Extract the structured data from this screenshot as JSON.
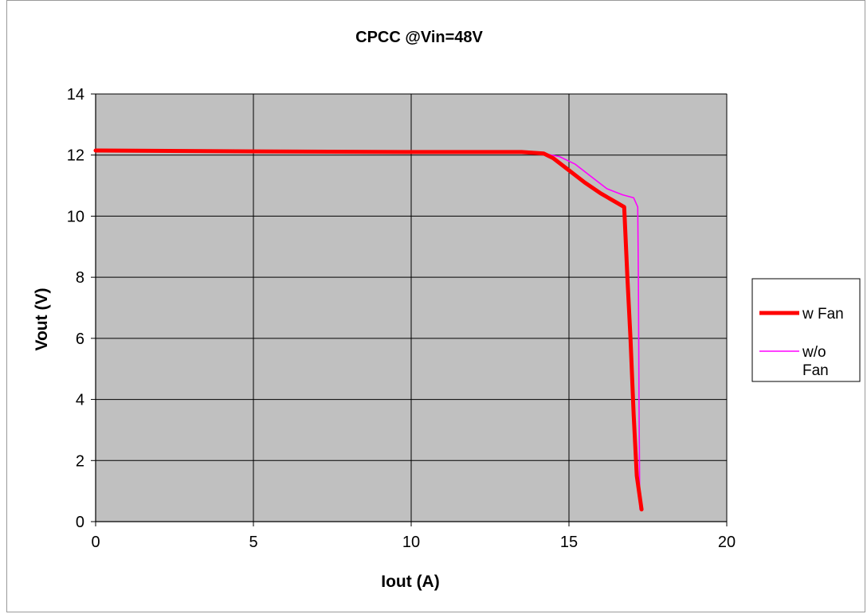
{
  "chart_data": {
    "type": "line",
    "title": "CPCC @Vin=48V",
    "xlabel": "Iout (A)",
    "ylabel": "Vout (V)",
    "xlim": [
      0,
      20
    ],
    "ylim": [
      0,
      14
    ],
    "x_ticks": [
      "0",
      "5",
      "10",
      "15",
      "20"
    ],
    "y_ticks": [
      "0",
      "2",
      "4",
      "6",
      "8",
      "10",
      "12",
      "14"
    ],
    "grid": true,
    "legend_position": "right",
    "plot_background": "#c0c0c0",
    "series": [
      {
        "name": "w Fan",
        "color": "#ff0000",
        "points": [
          [
            0,
            12.15
          ],
          [
            5,
            12.12
          ],
          [
            10,
            12.1
          ],
          [
            13.5,
            12.1
          ],
          [
            14.2,
            12.05
          ],
          [
            14.5,
            11.9
          ],
          [
            15.0,
            11.5
          ],
          [
            15.5,
            11.1
          ],
          [
            16.0,
            10.75
          ],
          [
            16.5,
            10.45
          ],
          [
            16.75,
            10.3
          ],
          [
            16.85,
            8.0
          ],
          [
            16.95,
            6.0
          ],
          [
            17.05,
            3.5
          ],
          [
            17.15,
            1.5
          ],
          [
            17.3,
            0.4
          ]
        ]
      },
      {
        "name": "w/o Fan",
        "color": "#ff00ff",
        "points": [
          [
            0,
            12.12
          ],
          [
            5,
            12.1
          ],
          [
            10,
            12.08
          ],
          [
            13.5,
            12.08
          ],
          [
            14.2,
            12.05
          ],
          [
            14.7,
            11.95
          ],
          [
            15.2,
            11.7
          ],
          [
            15.7,
            11.3
          ],
          [
            16.2,
            10.9
          ],
          [
            16.7,
            10.7
          ],
          [
            17.05,
            10.6
          ],
          [
            17.18,
            10.3
          ],
          [
            17.2,
            8.0
          ],
          [
            17.22,
            4.0
          ],
          [
            17.24,
            1.0
          ],
          [
            17.25,
            0.4
          ]
        ]
      }
    ]
  }
}
